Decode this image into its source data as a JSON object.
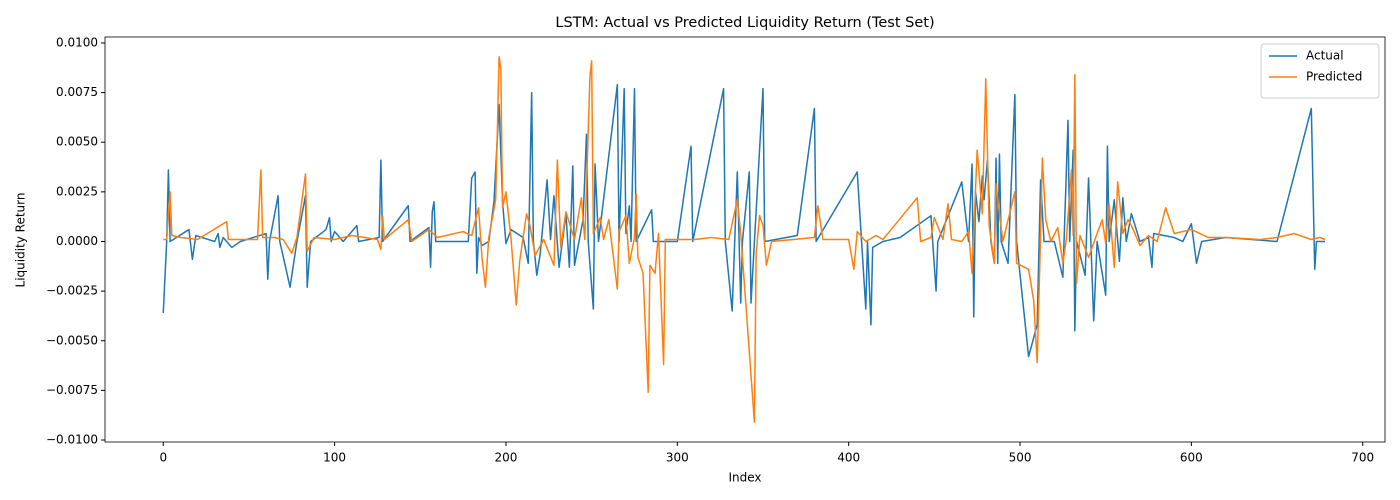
{
  "chart_data": {
    "type": "line",
    "title": "LSTM: Actual vs Predicted Liquidity Return (Test Set)",
    "x_label": "Index",
    "y_label": "Liquidity Return",
    "xlim": [
      -34,
      713
    ],
    "ylim": [
      -0.0101,
      0.0103
    ],
    "xticks": [
      0,
      100,
      200,
      300,
      400,
      500,
      600,
      700
    ],
    "yticks": [
      {
        "value": -0.01,
        "label": "−0.0100"
      },
      {
        "value": -0.0075,
        "label": "−0.0075"
      },
      {
        "value": -0.005,
        "label": "−0.0050"
      },
      {
        "value": -0.0025,
        "label": "−0.0025"
      },
      {
        "value": 0,
        "label": "0.0000"
      },
      {
        "value": 0.0025,
        "label": "0.0025"
      },
      {
        "value": 0.005,
        "label": "0.0050"
      },
      {
        "value": 0.0075,
        "label": "0.0075"
      },
      {
        "value": 0.01,
        "label": "0.0100"
      }
    ],
    "legend": "upper right",
    "series": [
      {
        "name": "Actual",
        "color": "#1f77b4",
        "x": [
          0,
          2,
          3,
          4,
          15,
          17,
          19,
          30,
          32,
          33,
          35,
          40,
          45,
          60,
          61,
          62,
          67,
          68,
          74,
          78,
          83,
          84,
          86,
          95,
          97,
          98,
          100,
          105,
          113,
          114,
          126,
          127,
          128,
          143,
          144,
          155,
          156,
          157,
          158,
          159,
          178,
          180,
          182,
          183,
          184,
          186,
          190,
          193,
          196,
          198,
          200,
          203,
          210,
          213,
          215,
          216,
          218,
          220,
          224,
          226,
          228,
          231,
          235,
          237,
          239,
          240,
          245,
          247,
          248,
          251,
          252,
          254,
          265,
          266,
          269,
          270,
          272,
          273,
          275,
          276,
          285,
          286,
          300,
          308,
          309,
          327,
          328,
          332,
          335,
          337,
          338,
          342,
          343,
          350,
          351,
          370,
          380,
          381,
          405,
          410,
          411,
          413,
          414,
          420,
          430,
          448,
          451,
          452,
          466,
          470,
          472,
          473,
          474,
          476,
          478,
          479,
          481,
          483,
          485,
          486,
          487,
          488,
          489,
          493,
          497,
          498,
          505,
          510,
          512,
          514,
          520,
          525,
          528,
          529,
          531,
          532,
          533,
          538,
          540,
          543,
          545,
          550,
          551,
          552,
          555,
          558,
          560,
          562,
          565,
          570,
          575,
          577,
          578,
          590,
          595,
          600,
          603,
          606,
          620,
          650,
          670,
          672,
          673,
          678
        ],
        "values": [
          -0.0036,
          0,
          0.0036,
          0,
          0.0006,
          -0.0009,
          0.0003,
          0,
          0.0004,
          -0.0003,
          0.0002,
          -0.0003,
          0,
          0.0004,
          -0.0019,
          0,
          0.0023,
          0,
          -0.0023,
          0,
          0.0023,
          -0.0023,
          0,
          0.0006,
          0.0012,
          0,
          0.0005,
          0,
          0.0008,
          0,
          0.0002,
          0.0041,
          0,
          0.0018,
          0,
          0.0007,
          -0.0013,
          0.0015,
          0.002,
          0,
          0,
          0.0032,
          0.0035,
          -0.0016,
          0.0002,
          -0.0002,
          0,
          0.002,
          0.0069,
          0.002,
          -0.0001,
          0.0006,
          0.0002,
          -0.0011,
          0.0075,
          0,
          -0.0017,
          -0.0006,
          0.0031,
          0.0001,
          0.0023,
          -0.0013,
          0.0014,
          -0.0013,
          0.0038,
          -0.0012,
          0.0011,
          0.0054,
          0,
          -0.0034,
          0.0039,
          0,
          0.0079,
          0,
          0.0077,
          0.0004,
          0.0018,
          0,
          0.0077,
          0,
          0.0016,
          0,
          0,
          0.0048,
          0,
          0.0077,
          0,
          -0.0035,
          0.0035,
          -0.0031,
          0,
          0.0035,
          -0.0031,
          0.0077,
          0,
          0.0003,
          0.0067,
          0,
          0.0035,
          -0.0034,
          0,
          -0.0042,
          -0.0003,
          0,
          0.0002,
          0.0013,
          -0.0025,
          0,
          0.003,
          0,
          0.0039,
          -0.0038,
          0.0025,
          0.001,
          0.0033,
          0.0021,
          0.0041,
          0,
          -0.0011,
          0.0042,
          -0.0011,
          0.0044,
          0,
          -0.0011,
          0.0074,
          0,
          -0.0058,
          -0.0042,
          0.0031,
          0,
          0,
          -0.0018,
          0.0061,
          0,
          0.0046,
          -0.0045,
          0,
          -0.0017,
          0.0032,
          -0.004,
          0,
          -0.0027,
          0.0048,
          0,
          0.0021,
          -0.001,
          0.0022,
          0,
          0.0014,
          0,
          0.0002,
          -0.0013,
          0.0004,
          0.0002,
          0,
          0.0009,
          -0.0011,
          0,
          0.0002,
          0,
          0.0067,
          -0.0014,
          0,
          0
        ]
      },
      {
        "name": "Predicted",
        "color": "#ff7f0e",
        "x": [
          0,
          2,
          4,
          5,
          10,
          20,
          37,
          38,
          55,
          57,
          58,
          65,
          70,
          75,
          78,
          83,
          84,
          88,
          100,
          110,
          125,
          127,
          128,
          129,
          143,
          145,
          155,
          160,
          175,
          180,
          184,
          186,
          188,
          190,
          194,
          196,
          197,
          198,
          200,
          203,
          206,
          208,
          212,
          214,
          217,
          222,
          228,
          230,
          232,
          235,
          240,
          244,
          246,
          249,
          250,
          251,
          255,
          257,
          260,
          263,
          265,
          266,
          270,
          272,
          275,
          276,
          277,
          280,
          283,
          284,
          287,
          289,
          292,
          293,
          300,
          310,
          320,
          330,
          335,
          337,
          345,
          346,
          348,
          350,
          352,
          355,
          380,
          382,
          385,
          400,
          403,
          405,
          410,
          416,
          420,
          440,
          442,
          448,
          450,
          455,
          458,
          460,
          466,
          470,
          472,
          475,
          478,
          480,
          482,
          485,
          486,
          490,
          497,
          498,
          505,
          508,
          510,
          512,
          513,
          515,
          518,
          522,
          525,
          527,
          530,
          531,
          532,
          533,
          535,
          540,
          545,
          548,
          550,
          552,
          555,
          557,
          560,
          563,
          565,
          570,
          575,
          580,
          585,
          590,
          600,
          610,
          620,
          640,
          650,
          660,
          670,
          675,
          678
        ],
        "values": [
          0.0001,
          0.0001,
          0.0025,
          0.0003,
          0.0002,
          0.0001,
          0.001,
          0.0001,
          0.0001,
          0.0036,
          0.0002,
          0.0002,
          0.0001,
          -0.0006,
          0.0002,
          0.0034,
          -0.0005,
          0.0002,
          0.0001,
          0.0003,
          0.0001,
          -0.0004,
          0.0013,
          0.0001,
          0.0011,
          0,
          0.0006,
          0.0002,
          0.0005,
          0.0003,
          0.0017,
          -0.0008,
          -0.0023,
          0.0002,
          0.0021,
          0.0093,
          0.0087,
          0.0017,
          0.0025,
          0.0001,
          -0.0032,
          -0.001,
          0.0014,
          0.0008,
          -0.0007,
          0.0001,
          -0.0012,
          0.0041,
          -0.0003,
          0.0015,
          0.0001,
          0.0022,
          0.0001,
          0.0083,
          0.0091,
          0.0004,
          0.0012,
          0.0001,
          0.0011,
          -0.001,
          -0.0024,
          0.0005,
          0.0013,
          -0.0011,
          0.0002,
          0.0024,
          -0.0008,
          -0.0016,
          -0.0076,
          -0.0012,
          -0.0016,
          0.0004,
          -0.0062,
          0.0001,
          0.0001,
          0.0001,
          0.0002,
          0.0001,
          0.0021,
          0.0004,
          -0.0091,
          -0.0006,
          0.0013,
          0.0008,
          -0.0012,
          0,
          0.0002,
          0.0018,
          0.0001,
          0.0001,
          -0.0014,
          0.0005,
          0,
          0.0003,
          0.0001,
          0.0022,
          0,
          0.0002,
          0.0012,
          0.0001,
          0.0019,
          0.0001,
          0,
          0.0005,
          -0.0016,
          0.0046,
          0.0014,
          0.0082,
          0.0008,
          -0.0011,
          0.0029,
          0,
          0.0025,
          -0.0011,
          -0.0014,
          -0.003,
          -0.0061,
          0.0003,
          0.0042,
          0.0011,
          0,
          0.0007,
          -0.0011,
          0.0001,
          0.0036,
          0.0003,
          0.0084,
          -0.0021,
          0.0003,
          -0.0008,
          0.0004,
          0.0011,
          -0.0001,
          0.0019,
          -0.0013,
          0.003,
          0.0004,
          0.0011,
          0.0008,
          -0.0002,
          0.0003,
          0,
          0.0017,
          0.0004,
          0.0006,
          0.0002,
          0.0002,
          0.0001,
          0.0002,
          0.0004,
          0.0001,
          0.0002,
          0.0001
        ]
      }
    ]
  }
}
